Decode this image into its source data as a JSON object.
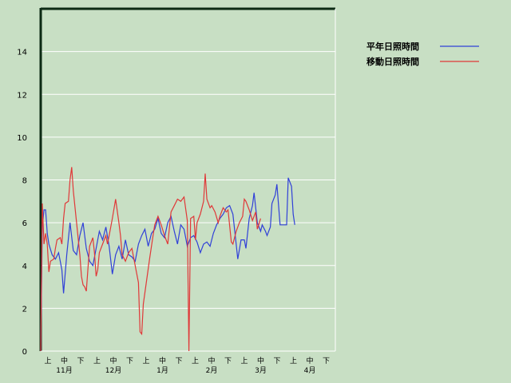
{
  "chart_data": {
    "type": "line",
    "title": "",
    "xlabel": "",
    "ylabel": "",
    "ylim": [
      0,
      16
    ],
    "yticks": [
      "0",
      "2",
      "4",
      "6",
      "8",
      "10",
      "12",
      "14"
    ],
    "grid": true,
    "legend_position": "top-right",
    "period_labels": [
      "上",
      "中",
      "下"
    ],
    "months": [
      "11月",
      "12月",
      "1月",
      "2月",
      "3月",
      "4月"
    ],
    "x_count": 180,
    "series": [
      {
        "name": "平年日照時間",
        "color": "#3040d8",
        "points": [
          [
            0,
            0
          ],
          [
            1,
            5.8
          ],
          [
            2,
            6.6
          ],
          [
            3,
            6.6
          ],
          [
            4,
            5.5
          ],
          [
            5,
            5.0
          ],
          [
            7,
            4.5
          ],
          [
            9,
            4.3
          ],
          [
            11,
            4.6
          ],
          [
            13,
            3.8
          ],
          [
            14,
            2.7
          ],
          [
            16,
            4.5
          ],
          [
            18,
            6.0
          ],
          [
            20,
            4.7
          ],
          [
            22,
            4.5
          ],
          [
            24,
            5.4
          ],
          [
            26,
            6.0
          ],
          [
            28,
            4.8
          ],
          [
            30,
            4.2
          ],
          [
            32,
            4.0
          ],
          [
            34,
            4.8
          ],
          [
            36,
            5.6
          ],
          [
            38,
            5.2
          ],
          [
            40,
            5.8
          ],
          [
            42,
            4.9
          ],
          [
            44,
            3.6
          ],
          [
            46,
            4.5
          ],
          [
            48,
            4.9
          ],
          [
            50,
            4.3
          ],
          [
            52,
            5.2
          ],
          [
            54,
            4.5
          ],
          [
            56,
            4.4
          ],
          [
            58,
            4.2
          ],
          [
            60,
            5.0
          ],
          [
            62,
            5.4
          ],
          [
            64,
            5.7
          ],
          [
            66,
            4.9
          ],
          [
            68,
            5.5
          ],
          [
            70,
            5.7
          ],
          [
            72,
            6.2
          ],
          [
            74,
            5.5
          ],
          [
            76,
            5.3
          ],
          [
            78,
            6.0
          ],
          [
            80,
            6.3
          ],
          [
            82,
            5.6
          ],
          [
            84,
            5.0
          ],
          [
            86,
            5.9
          ],
          [
            88,
            5.7
          ],
          [
            90,
            4.9
          ],
          [
            92,
            5.3
          ],
          [
            94,
            5.4
          ],
          [
            96,
            5.1
          ],
          [
            98,
            4.6
          ],
          [
            100,
            5.0
          ],
          [
            102,
            5.1
          ],
          [
            104,
            4.9
          ],
          [
            106,
            5.5
          ],
          [
            108,
            5.9
          ],
          [
            110,
            6.2
          ],
          [
            112,
            6.4
          ],
          [
            114,
            6.7
          ],
          [
            116,
            6.8
          ],
          [
            118,
            6.4
          ],
          [
            120,
            5.0
          ],
          [
            121,
            4.3
          ],
          [
            123,
            5.2
          ],
          [
            125,
            5.2
          ],
          [
            126,
            4.8
          ],
          [
            128,
            6.2
          ],
          [
            130,
            6.8
          ],
          [
            131,
            7.4
          ],
          [
            133,
            6.0
          ],
          [
            135,
            5.6
          ],
          [
            136,
            5.9
          ],
          [
            138,
            5.6
          ],
          [
            139,
            5.4
          ],
          [
            141,
            5.8
          ],
          [
            142,
            6.9
          ],
          [
            144,
            7.3
          ],
          [
            145,
            7.8
          ],
          [
            147,
            5.9
          ],
          [
            149,
            5.9
          ],
          [
            151,
            5.9
          ],
          [
            152,
            8.1
          ],
          [
            154,
            7.7
          ],
          [
            155,
            6.4
          ],
          [
            156,
            5.9
          ]
        ]
      },
      {
        "name": "移動日照時間",
        "color": "#e03838",
        "points": [
          [
            0,
            0
          ],
          [
            1,
            6.9
          ],
          [
            2,
            5.0
          ],
          [
            3,
            5.5
          ],
          [
            4,
            5.0
          ],
          [
            5,
            3.7
          ],
          [
            6,
            4.2
          ],
          [
            8,
            4.3
          ],
          [
            9,
            4.8
          ],
          [
            10,
            5.2
          ],
          [
            12,
            5.3
          ],
          [
            13,
            5.0
          ],
          [
            14,
            6.2
          ],
          [
            15,
            6.9
          ],
          [
            17,
            7.0
          ],
          [
            18,
            8.0
          ],
          [
            19,
            8.6
          ],
          [
            20,
            7.5
          ],
          [
            22,
            6.0
          ],
          [
            24,
            4.5
          ],
          [
            25,
            3.5
          ],
          [
            26,
            3.1
          ],
          [
            27,
            3.0
          ],
          [
            28,
            2.8
          ],
          [
            30,
            4.9
          ],
          [
            32,
            5.3
          ],
          [
            33,
            4.6
          ],
          [
            34,
            3.5
          ],
          [
            35,
            3.8
          ],
          [
            36,
            4.6
          ],
          [
            38,
            5.0
          ],
          [
            40,
            5.4
          ],
          [
            41,
            5.0
          ],
          [
            42,
            5.4
          ],
          [
            44,
            6.2
          ],
          [
            46,
            7.1
          ],
          [
            48,
            6.0
          ],
          [
            49,
            5.4
          ],
          [
            50,
            4.5
          ],
          [
            52,
            4.2
          ],
          [
            54,
            4.6
          ],
          [
            56,
            4.8
          ],
          [
            58,
            4.0
          ],
          [
            60,
            3.2
          ],
          [
            61,
            0.9
          ],
          [
            62,
            0.8
          ],
          [
            63,
            2.2
          ],
          [
            65,
            3.3
          ],
          [
            67,
            4.4
          ],
          [
            69,
            5.4
          ],
          [
            70,
            5.9
          ],
          [
            72,
            6.3
          ],
          [
            74,
            5.9
          ],
          [
            76,
            5.4
          ],
          [
            78,
            5.0
          ],
          [
            80,
            6.5
          ],
          [
            82,
            6.8
          ],
          [
            84,
            7.1
          ],
          [
            86,
            7.0
          ],
          [
            88,
            7.2
          ],
          [
            90,
            6.1
          ],
          [
            91,
            0
          ],
          [
            92,
            6.2
          ],
          [
            94,
            6.3
          ],
          [
            95,
            5.2
          ],
          [
            96,
            6.0
          ],
          [
            98,
            6.4
          ],
          [
            100,
            7.0
          ],
          [
            101,
            8.3
          ],
          [
            102,
            7.1
          ],
          [
            104,
            6.7
          ],
          [
            105,
            6.8
          ],
          [
            107,
            6.5
          ],
          [
            109,
            6.0
          ],
          [
            110,
            6.3
          ],
          [
            112,
            6.7
          ],
          [
            114,
            6.5
          ],
          [
            115,
            6.6
          ],
          [
            117,
            5.1
          ],
          [
            118,
            5.0
          ],
          [
            120,
            5.6
          ],
          [
            122,
            6.0
          ],
          [
            124,
            6.3
          ],
          [
            125,
            7.1
          ],
          [
            126,
            7.0
          ],
          [
            128,
            6.6
          ],
          [
            130,
            6.1
          ],
          [
            132,
            6.5
          ],
          [
            133,
            5.7
          ],
          [
            135,
            6.2
          ]
        ]
      }
    ]
  }
}
